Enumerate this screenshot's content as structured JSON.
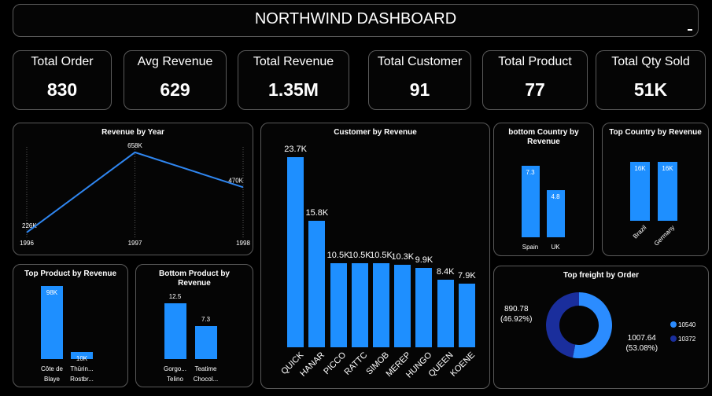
{
  "title": "NORTHWIND DASHBOARD",
  "kpis": [
    {
      "label": "Total Order",
      "value": "830"
    },
    {
      "label": "Avg Revenue",
      "value": "629"
    },
    {
      "label": "Total Revenue",
      "value": "1.35M"
    },
    {
      "label": "Total Customer",
      "value": "91"
    },
    {
      "label": "Total Product",
      "value": "77"
    },
    {
      "label": "Total Qty Sold",
      "value": "51K"
    }
  ],
  "chart_data": [
    {
      "type": "line",
      "title": "Revenue by Year",
      "categories": [
        "1996",
        "1997",
        "1998"
      ],
      "values": [
        226000,
        658000,
        470000
      ],
      "value_labels": [
        "226K",
        "658K",
        "470K"
      ],
      "color": "#2f86f0",
      "ylim": [
        200000,
        700000
      ]
    },
    {
      "type": "bar",
      "title": "Customer by Revenue",
      "categories": [
        "QUICK",
        "HANAR",
        "PICCO",
        "RATTC",
        "SIMOB",
        "MEREP",
        "HUNGO",
        "QUEEN",
        "KOENE"
      ],
      "values": [
        23700,
        15800,
        10500,
        10500,
        10500,
        10300,
        9900,
        8400,
        7900
      ],
      "value_labels": [
        "23.7K",
        "15.8K",
        "10.5K",
        "10.5K",
        "10.5K",
        "10.3K",
        "9.9K",
        "8.4K",
        "7.9K"
      ],
      "color": "#1e8fff",
      "ylim": [
        0,
        25000
      ]
    },
    {
      "type": "bar",
      "title": "bottom Country by Revenue",
      "categories": [
        "Spain",
        "UK"
      ],
      "values": [
        7.3,
        4.8
      ],
      "color": "#1e8fff",
      "ylim": [
        0,
        8
      ]
    },
    {
      "type": "bar",
      "title": "Top Country by Revenue",
      "categories": [
        "Brazil",
        "Germany"
      ],
      "values": [
        16000,
        16000
      ],
      "value_labels": [
        "16K",
        "16K"
      ],
      "color": "#1e8fff",
      "ylim": [
        0,
        18000
      ]
    },
    {
      "type": "bar",
      "title": "Top Product by Revenue",
      "categories": [
        "Côte de Blaye",
        "Thürin... Rostbr..."
      ],
      "values": [
        98000,
        10000
      ],
      "value_labels": [
        "98K",
        "10K"
      ],
      "color": "#1e8fff",
      "ylim": [
        0,
        100000
      ]
    },
    {
      "type": "bar",
      "title": "Bottom Product by Revenue",
      "categories": [
        "Gorgo... Telino",
        "Teatime Chocol..."
      ],
      "values": [
        12.5,
        7.3
      ],
      "color": "#1e8fff",
      "ylim": [
        0,
        14
      ]
    },
    {
      "type": "pie",
      "title": "Top freight by Order",
      "categories": [
        "10540",
        "10372"
      ],
      "values": [
        1007.64,
        890.78
      ],
      "value_labels": [
        "1007.64 (53.08%)",
        "890.78 (46.92%)"
      ],
      "colors": [
        "#2b8cff",
        "#1a2e9c"
      ]
    }
  ]
}
